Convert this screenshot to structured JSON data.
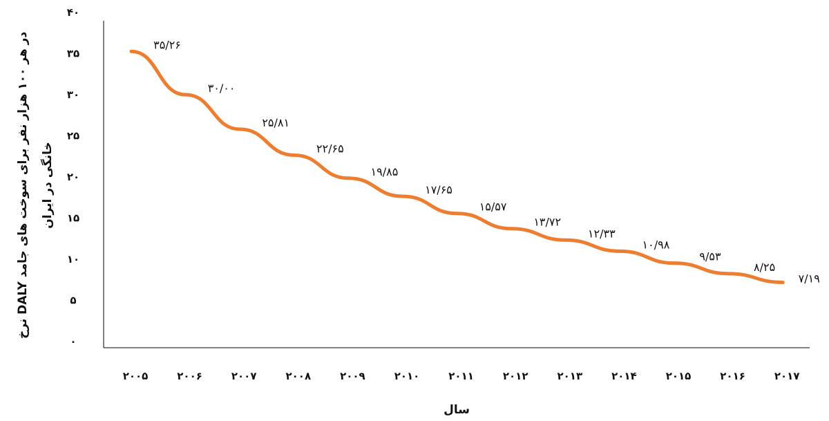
{
  "chart_data": {
    "type": "line",
    "title": "",
    "xlabel": "سال",
    "ylabel_lines": [
      "نرخ DALY در هر ۱۰۰ هزار نفر برای سوخت های جامد",
      "خانگی در ایران"
    ],
    "categories": [
      "۲۰۰۵",
      "۲۰۰۶",
      "۲۰۰۷",
      "۲۰۰۸",
      "۲۰۰۹",
      "۲۰۱۰",
      "۲۰۱۱",
      "۲۰۱۲",
      "۲۰۱۳",
      "۲۰۱۴",
      "۲۰۱۵",
      "۲۰۱۶",
      "۲۰۱۷"
    ],
    "values": [
      35.26,
      30.0,
      25.81,
      22.65,
      19.85,
      17.65,
      15.57,
      13.72,
      12.33,
      10.98,
      9.53,
      8.25,
      7.19
    ],
    "data_labels": [
      "۳۵/۲۶",
      "۳۰/۰۰",
      "۲۵/۸۱",
      "۲۲/۶۵",
      "۱۹/۸۵",
      "۱۷/۶۵",
      "۱۵/۵۷",
      "۱۳/۷۲",
      "۱۲/۳۳",
      "۱۰/۹۸",
      "۹/۵۳",
      "۸/۲۵",
      "۷/۱۹"
    ],
    "yticks": [
      0,
      5,
      10,
      15,
      20,
      25,
      30,
      35,
      40
    ],
    "ytick_labels": [
      "۰",
      "۵",
      "۱۰",
      "۱۵",
      "۲۰",
      "۲۵",
      "۳۰",
      "۳۵",
      "۴۰"
    ],
    "ylim": [
      0,
      40
    ],
    "grid": false,
    "legend": "none",
    "line_color": "#ED7D31",
    "axis_color": "#000000"
  }
}
